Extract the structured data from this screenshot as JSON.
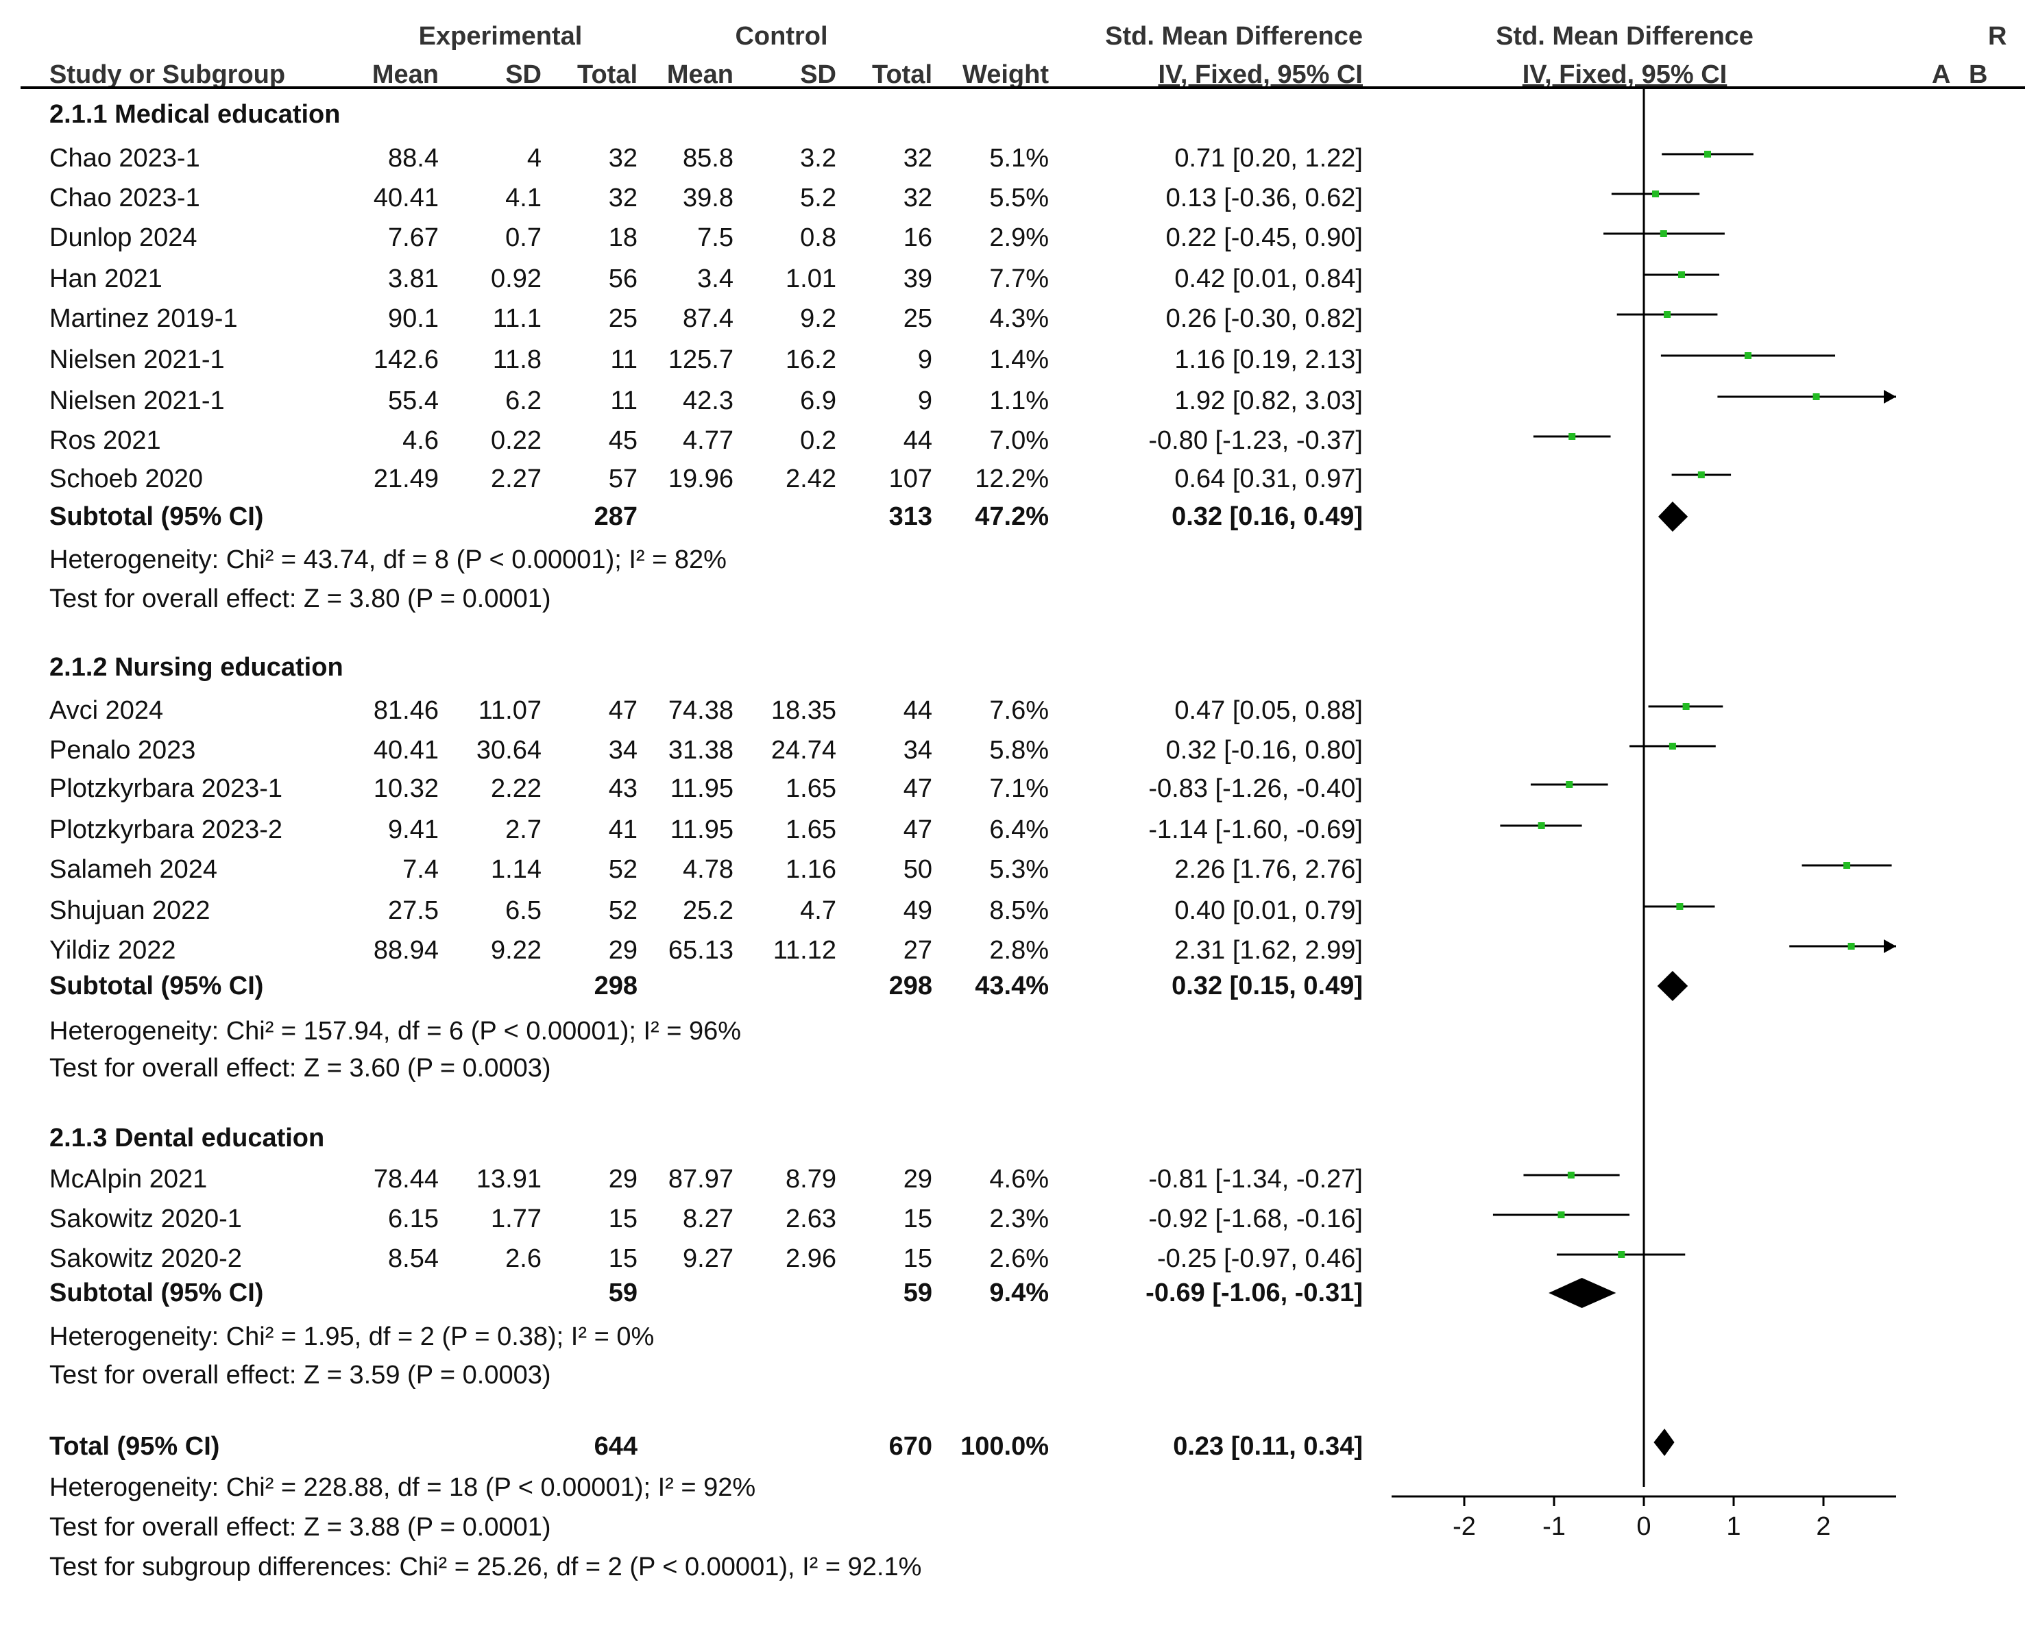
{
  "header": {
    "experimental": "Experimental",
    "control": "Control",
    "smd1": "Std. Mean Difference",
    "smd2": "Std. Mean Difference",
    "r": "R",
    "study": "Study or Subgroup",
    "mean_e": "Mean",
    "sd_e": "SD",
    "total_e": "Total",
    "mean_c": "Mean",
    "sd_c": "SD",
    "total_c": "Total",
    "weight": "Weight",
    "ci1": "IV, Fixed, 95% CI",
    "ci2": "IV, Fixed, 95% CI",
    "a": "A",
    "b": "B"
  },
  "groups": [
    {
      "title": "2.1.1 Medical education",
      "studies": [
        {
          "name": "Chao 2023-1",
          "me": "88.4",
          "sde": "4",
          "te": "32",
          "mc": "85.8",
          "sdc": "3.2",
          "tc": "32",
          "w": "5.1%",
          "ci": "0.71 [0.20, 1.22]"
        },
        {
          "name": "Chao 2023-1",
          "me": "40.41",
          "sde": "4.1",
          "te": "32",
          "mc": "39.8",
          "sdc": "5.2",
          "tc": "32",
          "w": "5.5%",
          "ci": "0.13 [-0.36, 0.62]"
        },
        {
          "name": "Dunlop 2024",
          "me": "7.67",
          "sde": "0.7",
          "te": "18",
          "mc": "7.5",
          "sdc": "0.8",
          "tc": "16",
          "w": "2.9%",
          "ci": "0.22 [-0.45, 0.90]"
        },
        {
          "name": "Han 2021",
          "me": "3.81",
          "sde": "0.92",
          "te": "56",
          "mc": "3.4",
          "sdc": "1.01",
          "tc": "39",
          "w": "7.7%",
          "ci": "0.42 [0.01, 0.84]"
        },
        {
          "name": "Martinez 2019-1",
          "me": "90.1",
          "sde": "11.1",
          "te": "25",
          "mc": "87.4",
          "sdc": "9.2",
          "tc": "25",
          "w": "4.3%",
          "ci": "0.26 [-0.30, 0.82]"
        },
        {
          "name": "Nielsen 2021-1",
          "me": "142.6",
          "sde": "11.8",
          "te": "11",
          "mc": "125.7",
          "sdc": "16.2",
          "tc": "9",
          "w": "1.4%",
          "ci": "1.16 [0.19, 2.13]"
        },
        {
          "name": "Nielsen 2021-1",
          "me": "55.4",
          "sde": "6.2",
          "te": "11",
          "mc": "42.3",
          "sdc": "6.9",
          "tc": "9",
          "w": "1.1%",
          "ci": "1.92 [0.82, 3.03]"
        },
        {
          "name": "Ros 2021",
          "me": "4.6",
          "sde": "0.22",
          "te": "45",
          "mc": "4.77",
          "sdc": "0.2",
          "tc": "44",
          "w": "7.0%",
          "ci": "-0.80 [-1.23, -0.37]"
        },
        {
          "name": "Schoeb 2020",
          "me": "21.49",
          "sde": "2.27",
          "te": "57",
          "mc": "19.96",
          "sdc": "2.42",
          "tc": "107",
          "w": "12.2%",
          "ci": "0.64 [0.31, 0.97]"
        }
      ],
      "subtotal": {
        "label": "Subtotal (95% CI)",
        "te": "287",
        "tc": "313",
        "w": "47.2%",
        "ci": "0.32 [0.16, 0.49]"
      },
      "heterogeneity": "Heterogeneity: Chi² = 43.74, df = 8 (P < 0.00001); I² = 82%",
      "overall": "Test for overall effect: Z = 3.80 (P = 0.0001)"
    },
    {
      "title": "2.1.2 Nursing education",
      "studies": [
        {
          "name": "Avci 2024",
          "me": "81.46",
          "sde": "11.07",
          "te": "47",
          "mc": "74.38",
          "sdc": "18.35",
          "tc": "44",
          "w": "7.6%",
          "ci": "0.47 [0.05, 0.88]"
        },
        {
          "name": "Penalo 2023",
          "me": "40.41",
          "sde": "30.64",
          "te": "34",
          "mc": "31.38",
          "sdc": "24.74",
          "tc": "34",
          "w": "5.8%",
          "ci": "0.32 [-0.16, 0.80]"
        },
        {
          "name": "Plotzkyrbara 2023-1",
          "me": "10.32",
          "sde": "2.22",
          "te": "43",
          "mc": "11.95",
          "sdc": "1.65",
          "tc": "47",
          "w": "7.1%",
          "ci": "-0.83 [-1.26, -0.40]"
        },
        {
          "name": "Plotzkyrbara 2023-2",
          "me": "9.41",
          "sde": "2.7",
          "te": "41",
          "mc": "11.95",
          "sdc": "1.65",
          "tc": "47",
          "w": "6.4%",
          "ci": "-1.14 [-1.60, -0.69]"
        },
        {
          "name": "Salameh 2024",
          "me": "7.4",
          "sde": "1.14",
          "te": "52",
          "mc": "4.78",
          "sdc": "1.16",
          "tc": "50",
          "w": "5.3%",
          "ci": "2.26 [1.76, 2.76]"
        },
        {
          "name": "Shujuan 2022",
          "me": "27.5",
          "sde": "6.5",
          "te": "52",
          "mc": "25.2",
          "sdc": "4.7",
          "tc": "49",
          "w": "8.5%",
          "ci": "0.40 [0.01, 0.79]"
        },
        {
          "name": "Yildiz 2022",
          "me": "88.94",
          "sde": "9.22",
          "te": "29",
          "mc": "65.13",
          "sdc": "11.12",
          "tc": "27",
          "w": "2.8%",
          "ci": "2.31 [1.62, 2.99]"
        }
      ],
      "subtotal": {
        "label": "Subtotal (95% CI)",
        "te": "298",
        "tc": "298",
        "w": "43.4%",
        "ci": "0.32 [0.15, 0.49]"
      },
      "heterogeneity": "Heterogeneity: Chi² = 157.94, df = 6 (P < 0.00001); I² = 96%",
      "overall": "Test for overall effect: Z = 3.60 (P = 0.0003)"
    },
    {
      "title": "2.1.3 Dental education",
      "studies": [
        {
          "name": "McAlpin 2021",
          "me": "78.44",
          "sde": "13.91",
          "te": "29",
          "mc": "87.97",
          "sdc": "8.79",
          "tc": "29",
          "w": "4.6%",
          "ci": "-0.81 [-1.34, -0.27]"
        },
        {
          "name": "Sakowitz 2020-1",
          "me": "6.15",
          "sde": "1.77",
          "te": "15",
          "mc": "8.27",
          "sdc": "2.63",
          "tc": "15",
          "w": "2.3%",
          "ci": "-0.92 [-1.68, -0.16]"
        },
        {
          "name": "Sakowitz 2020-2",
          "me": "8.54",
          "sde": "2.6",
          "te": "15",
          "mc": "9.27",
          "sdc": "2.96",
          "tc": "15",
          "w": "2.6%",
          "ci": "-0.25 [-0.97, 0.46]"
        }
      ],
      "subtotal": {
        "label": "Subtotal (95% CI)",
        "te": "59",
        "tc": "59",
        "w": "9.4%",
        "ci": "-0.69 [-1.06, -0.31]"
      },
      "heterogeneity": "Heterogeneity: Chi² = 1.95, df = 2 (P = 0.38); I² = 0%",
      "overall": "Test for overall effect: Z = 3.59 (P = 0.0003)"
    }
  ],
  "total": {
    "label": "Total (95% CI)",
    "te": "644",
    "tc": "670",
    "w": "100.0%",
    "ci": "0.23 [0.11, 0.34]",
    "heterogeneity": "Heterogeneity: Chi² = 228.88, df = 18 (P < 0.00001); I² = 92%",
    "overall": "Test for overall effect: Z = 3.88 (P = 0.0001)",
    "subgroup": "Test for subgroup differences: Chi² = 25.26, df = 2 (P < 0.00001), I² = 92.1%"
  },
  "chart_data": {
    "type": "forest",
    "title": "Std. Mean Difference IV, Fixed, 95% CI",
    "xlabel": "",
    "ylabel": "",
    "xlim": [
      -2.8,
      2.8
    ],
    "ticks": [
      -2,
      -1,
      0,
      1,
      2
    ],
    "tick_labels": [
      "-2",
      "-1",
      "0",
      "1",
      "2"
    ],
    "marker_color": "#22bb22",
    "groups": [
      {
        "name": "2.1.1 Medical education",
        "studies": [
          {
            "est": 0.71,
            "lo": 0.2,
            "hi": 1.22
          },
          {
            "est": 0.13,
            "lo": -0.36,
            "hi": 0.62
          },
          {
            "est": 0.22,
            "lo": -0.45,
            "hi": 0.9
          },
          {
            "est": 0.42,
            "lo": 0.01,
            "hi": 0.84
          },
          {
            "est": 0.26,
            "lo": -0.3,
            "hi": 0.82
          },
          {
            "est": 1.16,
            "lo": 0.19,
            "hi": 2.13
          },
          {
            "est": 1.92,
            "lo": 0.82,
            "hi": 3.03
          },
          {
            "est": -0.8,
            "lo": -1.23,
            "hi": -0.37
          },
          {
            "est": 0.64,
            "lo": 0.31,
            "hi": 0.97
          }
        ],
        "subtotal": {
          "est": 0.32,
          "lo": 0.16,
          "hi": 0.49
        }
      },
      {
        "name": "2.1.2 Nursing education",
        "studies": [
          {
            "est": 0.47,
            "lo": 0.05,
            "hi": 0.88
          },
          {
            "est": 0.32,
            "lo": -0.16,
            "hi": 0.8
          },
          {
            "est": -0.83,
            "lo": -1.26,
            "hi": -0.4
          },
          {
            "est": -1.14,
            "lo": -1.6,
            "hi": -0.69
          },
          {
            "est": 2.26,
            "lo": 1.76,
            "hi": 2.76
          },
          {
            "est": 0.4,
            "lo": 0.01,
            "hi": 0.79
          },
          {
            "est": 2.31,
            "lo": 1.62,
            "hi": 2.99
          }
        ],
        "subtotal": {
          "est": 0.32,
          "lo": 0.15,
          "hi": 0.49
        }
      },
      {
        "name": "2.1.3 Dental education",
        "studies": [
          {
            "est": -0.81,
            "lo": -1.34,
            "hi": -0.27
          },
          {
            "est": -0.92,
            "lo": -1.68,
            "hi": -0.16
          },
          {
            "est": -0.25,
            "lo": -0.97,
            "hi": 0.46
          }
        ],
        "subtotal": {
          "est": -0.69,
          "lo": -1.06,
          "hi": -0.31
        }
      }
    ],
    "total": {
      "est": 0.23,
      "lo": 0.11,
      "hi": 0.34
    }
  }
}
